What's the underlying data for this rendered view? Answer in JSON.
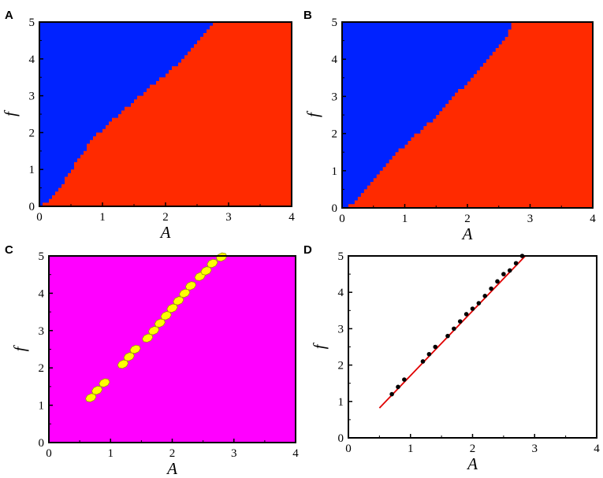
{
  "panels": [
    "A",
    "B",
    "C",
    "D"
  ],
  "colors": {
    "blue": "#0022ff",
    "red": "#ff2a00",
    "magenta": "#ff00ff",
    "yellow": "#ffff00",
    "line": "#e00000",
    "point": "#000000"
  },
  "chart_data": [
    {
      "panel": "A",
      "type": "heatmap",
      "xlabel": "A",
      "ylabel": "f",
      "xlim": [
        0,
        4
      ],
      "ylim": [
        0,
        5
      ],
      "xticks": [
        "0",
        "1",
        "2",
        "3",
        "4"
      ],
      "yticks": [
        "0",
        "1",
        "2",
        "3",
        "4",
        "5"
      ],
      "regions": [
        {
          "color": "blue",
          "where": "f above boundary"
        },
        {
          "color": "red",
          "where": "f below boundary"
        }
      ],
      "boundary": {
        "A": [
          0.0,
          0.1,
          0.2,
          0.8,
          1.5,
          2.2,
          2.6,
          2.75
        ],
        "f": [
          0.0,
          0.1,
          0.25,
          1.8,
          2.9,
          3.9,
          4.7,
          5.0
        ]
      }
    },
    {
      "panel": "B",
      "type": "heatmap",
      "xlabel": "A",
      "ylabel": "f",
      "xlim": [
        0,
        4
      ],
      "ylim": [
        0,
        5
      ],
      "xticks": [
        "0",
        "1",
        "2",
        "3",
        "4"
      ],
      "yticks": [
        "0",
        "1",
        "2",
        "3",
        "4",
        "5"
      ],
      "regions": [
        {
          "color": "blue",
          "where": "f above boundary"
        },
        {
          "color": "red",
          "where": "f below boundary"
        }
      ],
      "boundary": {
        "A": [
          0.0,
          0.1,
          0.2,
          0.8,
          1.5,
          2.2,
          2.6,
          2.7
        ],
        "f": [
          0.0,
          0.05,
          0.2,
          1.4,
          2.5,
          3.8,
          4.6,
          5.0
        ]
      }
    },
    {
      "panel": "C",
      "type": "heatmap",
      "xlabel": "A",
      "ylabel": "f",
      "xlim": [
        0,
        4
      ],
      "ylim": [
        0,
        5
      ],
      "xticks": [
        "0",
        "1",
        "2",
        "3",
        "4"
      ],
      "yticks": [
        "0",
        "1",
        "2",
        "3",
        "4",
        "5"
      ],
      "background": "magenta",
      "spots_color": "yellow",
      "spots": [
        {
          "A": 0.68,
          "f": 1.2
        },
        {
          "A": 0.78,
          "f": 1.4
        },
        {
          "A": 0.9,
          "f": 1.6
        },
        {
          "A": 1.2,
          "f": 2.1
        },
        {
          "A": 1.3,
          "f": 2.3
        },
        {
          "A": 1.4,
          "f": 2.5
        },
        {
          "A": 1.6,
          "f": 2.8
        },
        {
          "A": 1.7,
          "f": 3.0
        },
        {
          "A": 1.8,
          "f": 3.2
        },
        {
          "A": 1.9,
          "f": 3.4
        },
        {
          "A": 2.0,
          "f": 3.6
        },
        {
          "A": 2.1,
          "f": 3.8
        },
        {
          "A": 2.2,
          "f": 4.0
        },
        {
          "A": 2.3,
          "f": 4.2
        },
        {
          "A": 2.45,
          "f": 4.45
        },
        {
          "A": 2.55,
          "f": 4.6
        },
        {
          "A": 2.65,
          "f": 4.8
        },
        {
          "A": 2.8,
          "f": 4.97
        }
      ]
    },
    {
      "panel": "D",
      "type": "scatter",
      "xlabel": "A",
      "ylabel": "f",
      "xlim": [
        0,
        4
      ],
      "ylim": [
        0,
        5
      ],
      "xticks": [
        "0",
        "1",
        "2",
        "3",
        "4"
      ],
      "yticks": [
        "0",
        "1",
        "2",
        "3",
        "4",
        "5"
      ],
      "points": {
        "x": [
          0.7,
          0.8,
          0.9,
          1.2,
          1.3,
          1.4,
          1.6,
          1.7,
          1.8,
          1.9,
          2.0,
          2.1,
          2.2,
          2.3,
          2.4,
          2.5,
          2.6,
          2.7,
          2.8
        ],
        "y": [
          1.2,
          1.4,
          1.6,
          2.1,
          2.3,
          2.5,
          2.8,
          3.0,
          3.2,
          3.4,
          3.55,
          3.7,
          3.9,
          4.1,
          4.3,
          4.5,
          4.6,
          4.8,
          5.0
        ]
      },
      "fit_line": {
        "x": [
          0.5,
          2.85
        ],
        "y": [
          0.82,
          5.0
        ]
      }
    }
  ]
}
